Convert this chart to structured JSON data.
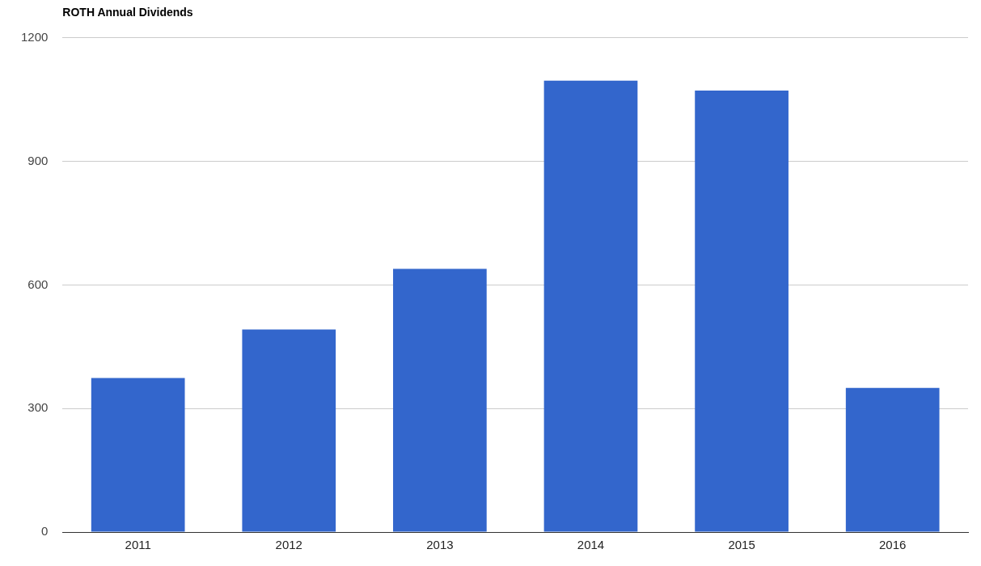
{
  "chart_data": {
    "type": "bar",
    "title": "ROTH Annual Dividends",
    "categories": [
      "2011",
      "2012",
      "2013",
      "2014",
      "2015",
      "2016"
    ],
    "values": [
      374,
      492,
      639,
      1096,
      1072,
      350
    ],
    "color": "#3366cc",
    "ylim": [
      0,
      1200
    ],
    "yticks": [
      0,
      300,
      600,
      900,
      1200
    ],
    "grid": "y",
    "legend": false
  }
}
